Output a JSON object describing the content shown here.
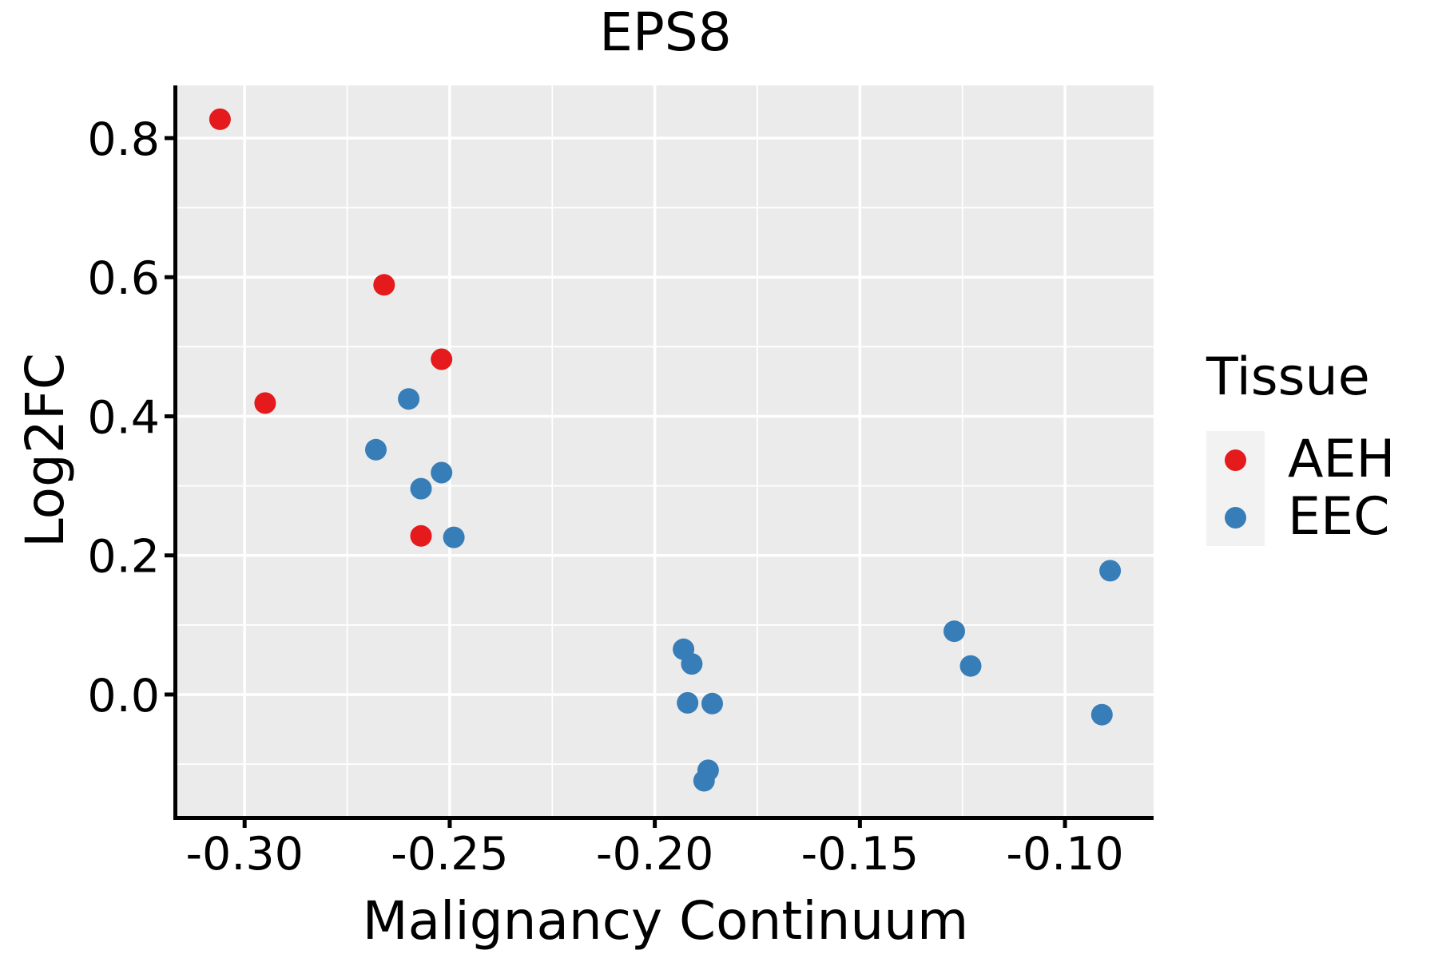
{
  "title": "EPS8",
  "colors": {
    "background": "#FFFFFF",
    "panel_background": "#EBEBEB",
    "gridline": "#FFFFFF",
    "axis_and_text": "#000000",
    "legend_key_background": "#F2F2F2",
    "aeh": "#E41A1C",
    "eec": "#377EB8"
  },
  "legend": {
    "title": "Tissue",
    "position": "right",
    "entries": [
      {
        "label": "AEH",
        "color": "#E41A1C"
      },
      {
        "label": "EEC",
        "color": "#377EB8"
      }
    ]
  },
  "chart_data": {
    "type": "scatter",
    "title": "EPS8",
    "xlabel": "Malignancy Continuum",
    "ylabel": "Log2FC",
    "xlim": [
      -0.3164,
      -0.0784
    ],
    "ylim": [
      -0.1745,
      0.8757
    ],
    "x_ticks": [
      -0.3,
      -0.25,
      -0.2,
      -0.15,
      -0.1
    ],
    "x_tick_labels": [
      "-0.30",
      "-0.25",
      "-0.20",
      "-0.15",
      "-0.10"
    ],
    "y_ticks": [
      0.0,
      0.2,
      0.4,
      0.6,
      0.8
    ],
    "y_tick_labels": [
      "0.0",
      "0.2",
      "0.4",
      "0.6",
      "0.8"
    ],
    "x_minor_gridlines": [
      -0.275,
      -0.225,
      -0.175,
      -0.125
    ],
    "y_minor_gridlines": [
      -0.1,
      0.1,
      0.3,
      0.5,
      0.7
    ],
    "grid": "major and minor white gridlines on grey panel",
    "legend_position": "right",
    "series": [
      {
        "name": "AEH",
        "color": "#E41A1C",
        "points": [
          [
            -0.306,
            0.827
          ],
          [
            -0.266,
            0.589
          ],
          [
            -0.252,
            0.482
          ],
          [
            -0.295,
            0.419
          ],
          [
            -0.257,
            0.228
          ]
        ]
      },
      {
        "name": "EEC",
        "color": "#377EB8",
        "points": [
          [
            -0.26,
            0.425
          ],
          [
            -0.268,
            0.352
          ],
          [
            -0.252,
            0.319
          ],
          [
            -0.257,
            0.296
          ],
          [
            -0.249,
            0.226
          ],
          [
            -0.193,
            0.065
          ],
          [
            -0.191,
            0.044
          ],
          [
            -0.192,
            -0.012
          ],
          [
            -0.186,
            -0.013
          ],
          [
            -0.187,
            -0.109
          ],
          [
            -0.188,
            -0.124
          ],
          [
            -0.127,
            0.091
          ],
          [
            -0.123,
            0.041
          ],
          [
            -0.089,
            0.178
          ],
          [
            -0.091,
            -0.029
          ]
        ]
      }
    ]
  }
}
